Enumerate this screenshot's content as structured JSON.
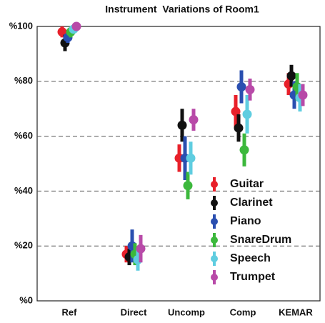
{
  "chart_data": {
    "type": "errorbar",
    "title": "Instrument  Variations of Room1",
    "categories": [
      "Ref",
      "Direct",
      "Uncomp",
      "Comp",
      "KEMAR"
    ],
    "ylim": [
      0,
      100
    ],
    "yticks": [
      {
        "value": 0,
        "label": "%0"
      },
      {
        "value": 20,
        "label": "%20"
      },
      {
        "value": 40,
        "label": "%40"
      },
      {
        "value": 60,
        "label": "%60"
      },
      {
        "value": 80,
        "label": "%80"
      },
      {
        "value": 100,
        "label": "%100"
      }
    ],
    "grid": true,
    "legend": "lower right",
    "series": [
      {
        "name": "Guitar",
        "color": "#e8202a",
        "values": [
          98,
          17,
          52,
          69,
          79
        ],
        "errors": [
          2,
          3,
          5,
          6,
          4
        ]
      },
      {
        "name": "Clarinet",
        "color": "#111111",
        "values": [
          94,
          16,
          64,
          63,
          82
        ],
        "errors": [
          3,
          3,
          6,
          5,
          4
        ]
      },
      {
        "name": "Piano",
        "color": "#2a4fb0",
        "values": [
          96,
          20,
          52,
          78,
          75
        ],
        "errors": [
          2,
          6,
          8,
          6,
          5
        ]
      },
      {
        "name": "SnareDrum",
        "color": "#3cb83c",
        "values": [
          98,
          17,
          42,
          55,
          78
        ],
        "errors": [
          2,
          4,
          5,
          6,
          5
        ]
      },
      {
        "name": "Speech",
        "color": "#5fcde0",
        "values": [
          99,
          15,
          52,
          68,
          74
        ],
        "errors": [
          1,
          4,
          6,
          7,
          5
        ]
      },
      {
        "name": "Trumpet",
        "color": "#b84aa8",
        "values": [
          100,
          19,
          66,
          77,
          75
        ],
        "errors": [
          1,
          5,
          4,
          4,
          4
        ]
      }
    ]
  }
}
